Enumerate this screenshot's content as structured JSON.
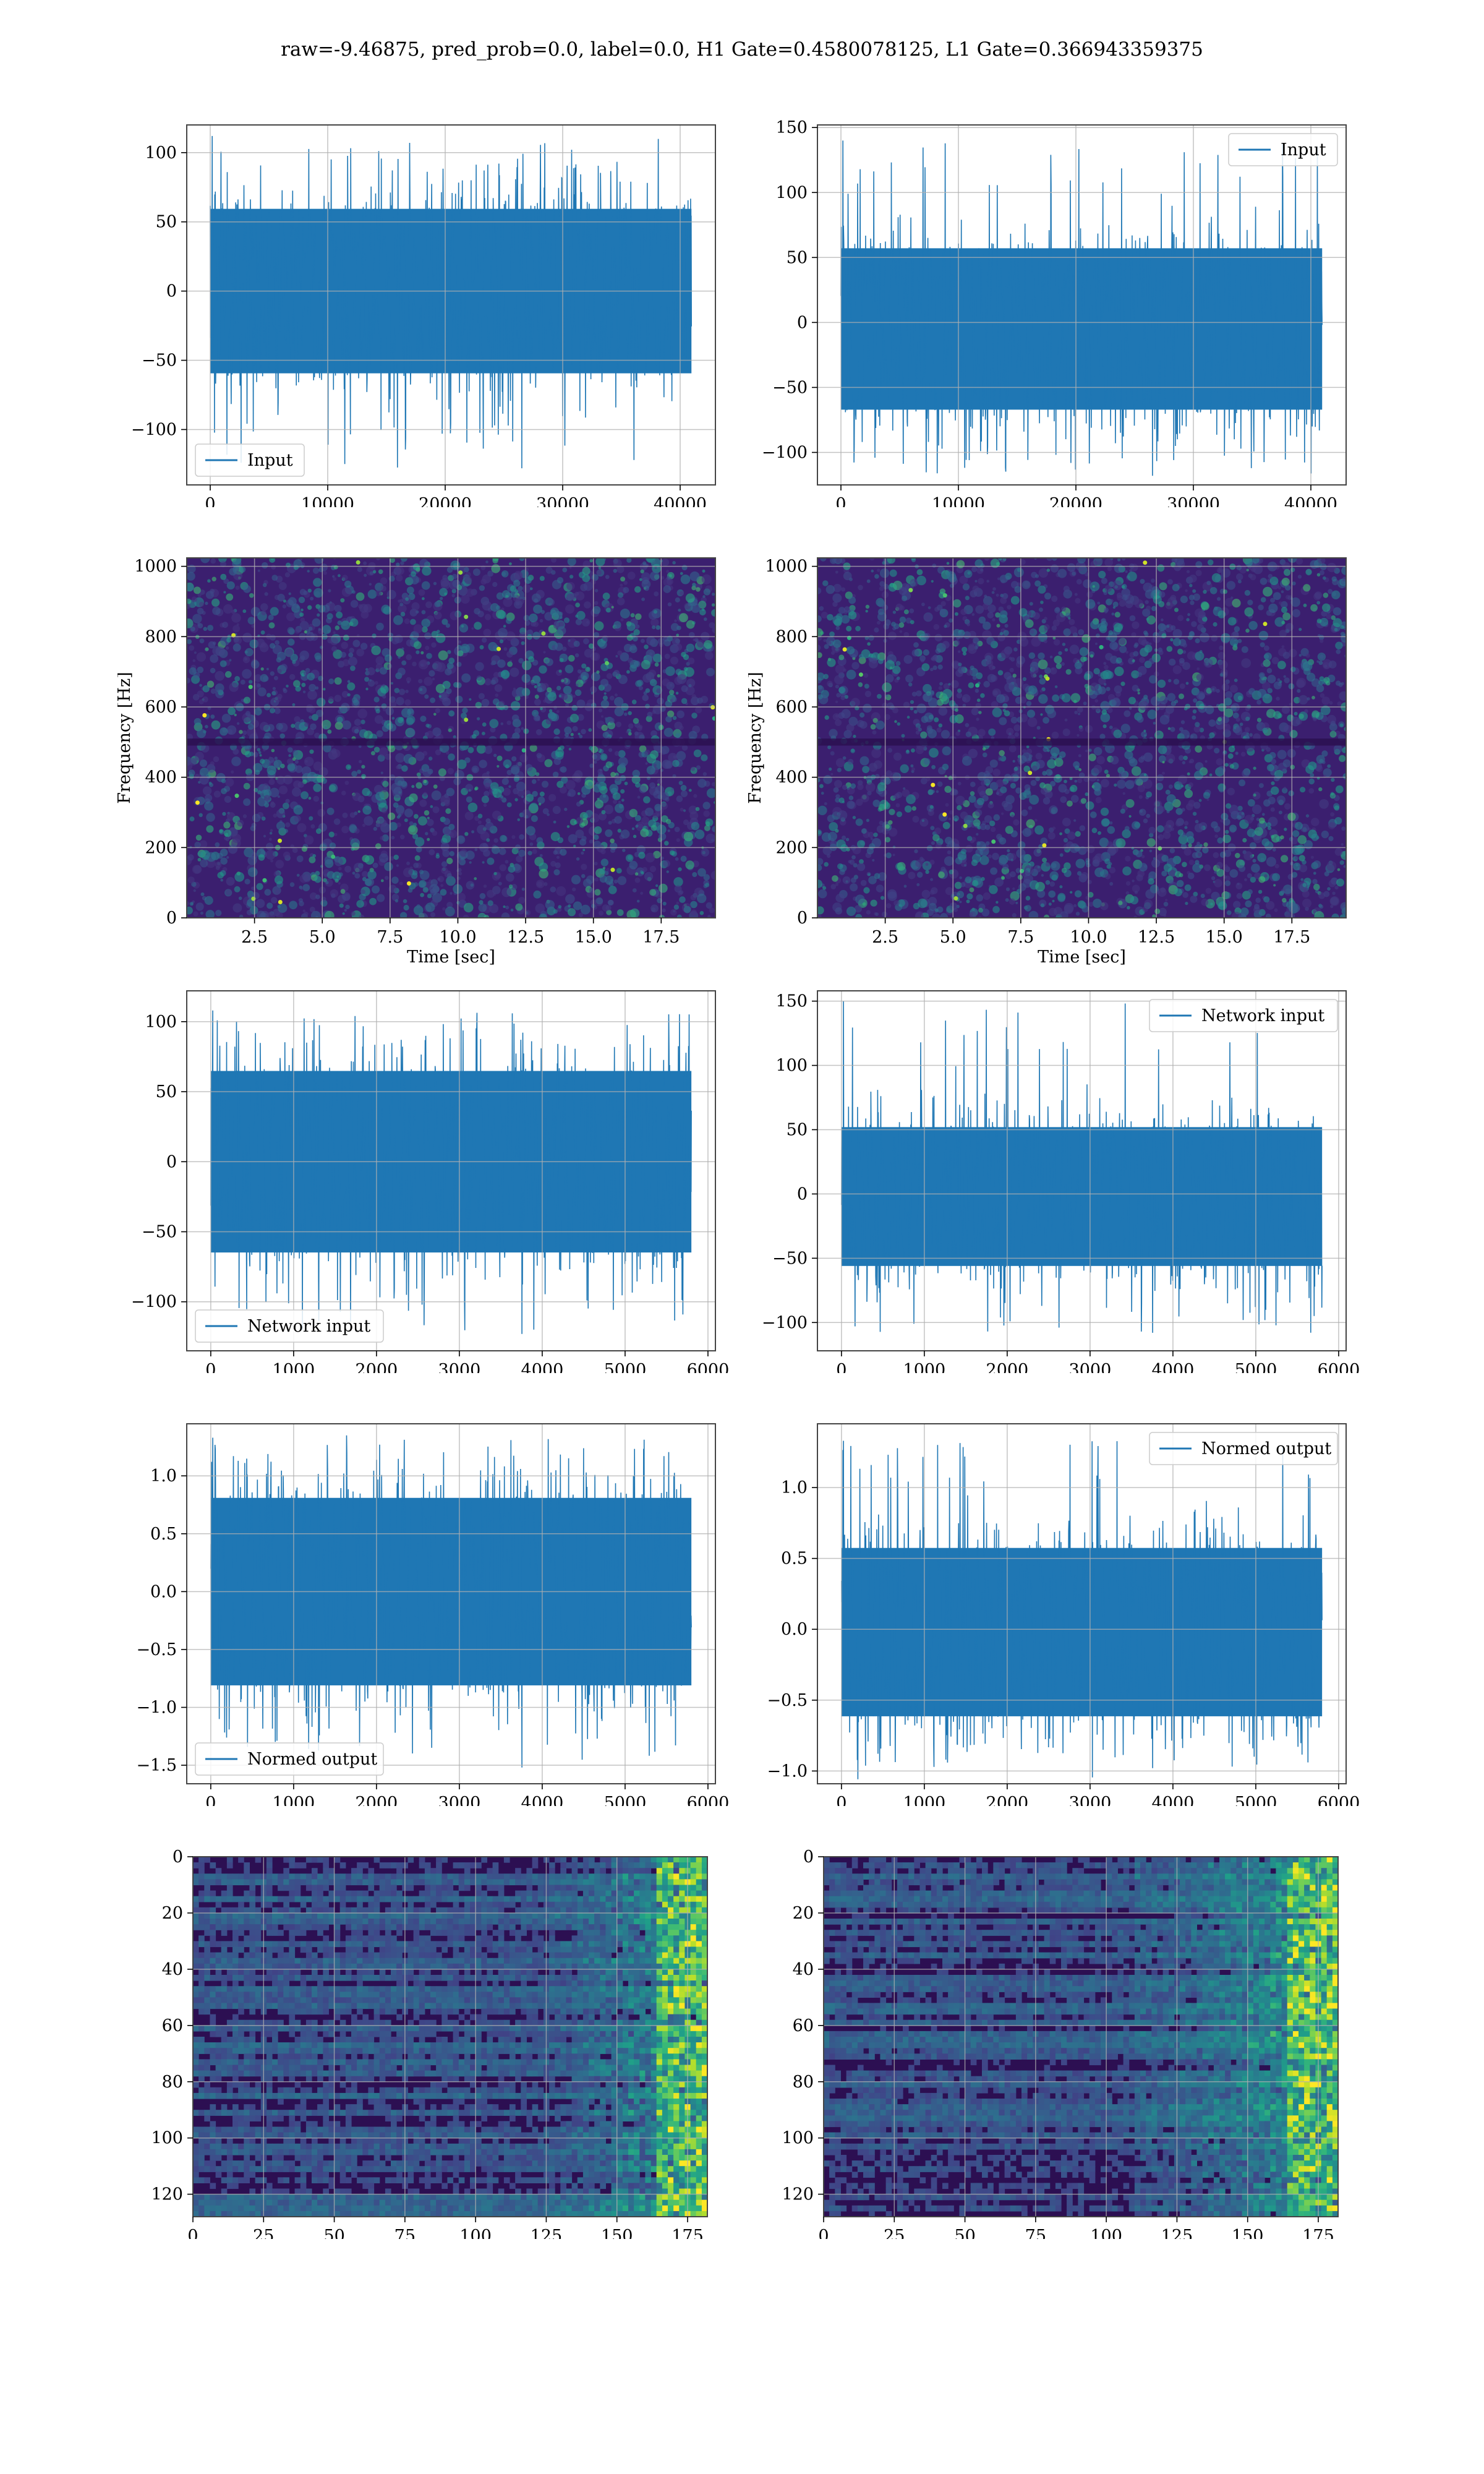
{
  "figure": {
    "suptitle": "raw=-9.46875, pred_prob=0.0, label=0.0, H1 Gate=0.4580078125, L1 Gate=0.366943359375",
    "colors": {
      "series": "#1f77b4",
      "grid": "#b0b0b0",
      "spec_bg": "#3b1e6e"
    }
  },
  "chart_data": [
    {
      "type": "line",
      "title": "",
      "xlabel": "",
      "ylabel": "",
      "xlim": [
        -2000,
        43000
      ],
      "ylim": [
        -140,
        120
      ],
      "xticks": [
        0,
        10000,
        20000,
        30000,
        40000
      ],
      "yticks": [
        -100,
        -50,
        0,
        50,
        100
      ],
      "grid": true,
      "series": [
        {
          "name": "Input",
          "x_range": [
            0,
            40960
          ],
          "mean": 0,
          "std": 22,
          "peak_max": 112,
          "peak_min": -128
        }
      ],
      "legend": "lower-left"
    },
    {
      "type": "line",
      "title": "",
      "xlabel": "",
      "ylabel": "",
      "xlim": [
        -2000,
        43000
      ],
      "ylim": [
        -125,
        152
      ],
      "xticks": [
        0,
        10000,
        20000,
        30000,
        40000
      ],
      "yticks": [
        -100,
        -50,
        0,
        50,
        100,
        150
      ],
      "grid": true,
      "series": [
        {
          "name": "Input",
          "x_range": [
            0,
            40960
          ],
          "mean": -5,
          "std": 23,
          "peak_max": 140,
          "peak_min": -118
        }
      ],
      "legend": "upper-right"
    },
    {
      "type": "heatmap",
      "title": "",
      "xlabel": "Time [sec]",
      "ylabel": "Frequency [Hz]",
      "xlim": [
        0,
        19.5
      ],
      "ylim": [
        0,
        1024
      ],
      "xticks": [
        2.5,
        5.0,
        7.5,
        10.0,
        12.5,
        15.0,
        17.5
      ],
      "xtick_labels": [
        "2.5",
        "5.0",
        "7.5",
        "10.0",
        "12.5",
        "15.0",
        "17.5"
      ],
      "yticks": [
        0,
        200,
        400,
        600,
        800,
        1000
      ],
      "grid": true,
      "colormap": "viridis"
    },
    {
      "type": "heatmap",
      "title": "",
      "xlabel": "Time [sec]",
      "ylabel": "Frequency [Hz]",
      "xlim": [
        0,
        19.5
      ],
      "ylim": [
        0,
        1024
      ],
      "xticks": [
        2.5,
        5.0,
        7.5,
        10.0,
        12.5,
        15.0,
        17.5
      ],
      "xtick_labels": [
        "2.5",
        "5.0",
        "7.5",
        "10.0",
        "12.5",
        "15.0",
        "17.5"
      ],
      "yticks": [
        0,
        200,
        400,
        600,
        800,
        1000
      ],
      "grid": true,
      "colormap": "viridis"
    },
    {
      "type": "line",
      "title": "",
      "xlabel": "",
      "ylabel": "",
      "xlim": [
        -290,
        6090
      ],
      "ylim": [
        -135,
        122
      ],
      "xticks": [
        0,
        1000,
        2000,
        3000,
        4000,
        5000,
        6000
      ],
      "yticks": [
        -100,
        -50,
        0,
        50,
        100
      ],
      "grid": true,
      "series": [
        {
          "name": "Network input",
          "x_range": [
            0,
            5800
          ],
          "mean": 0,
          "std": 24,
          "peak_max": 108,
          "peak_min": -123
        }
      ],
      "legend": "lower-left"
    },
    {
      "type": "line",
      "title": "",
      "xlabel": "",
      "ylabel": "",
      "xlim": [
        -290,
        6090
      ],
      "ylim": [
        -122,
        158
      ],
      "xticks": [
        0,
        1000,
        2000,
        3000,
        4000,
        5000,
        6000
      ],
      "yticks": [
        -100,
        -50,
        0,
        50,
        100,
        150
      ],
      "grid": true,
      "series": [
        {
          "name": "Network input",
          "x_range": [
            0,
            5800
          ],
          "mean": -2,
          "std": 20,
          "peak_max": 150,
          "peak_min": -108
        }
      ],
      "legend": "upper-right"
    },
    {
      "type": "line",
      "title": "",
      "xlabel": "",
      "ylabel": "",
      "xlim": [
        -290,
        6090
      ],
      "ylim": [
        -1.66,
        1.45
      ],
      "xticks": [
        0,
        1000,
        2000,
        3000,
        4000,
        5000,
        6000
      ],
      "yticks": [
        -1.5,
        -1.0,
        -0.5,
        0.0,
        0.5,
        1.0
      ],
      "ytick_labels": [
        "−1.5",
        "−1.0",
        "−0.5",
        "0.0",
        "0.5",
        "1.0"
      ],
      "grid": true,
      "series": [
        {
          "name": "Normed output",
          "x_range": [
            0,
            5800
          ],
          "mean": 0,
          "std": 0.3,
          "peak_max": 1.33,
          "peak_min": -1.52
        }
      ],
      "legend": "lower-left"
    },
    {
      "type": "line",
      "title": "",
      "xlabel": "",
      "ylabel": "",
      "xlim": [
        -290,
        6090
      ],
      "ylim": [
        -1.09,
        1.45
      ],
      "xticks": [
        0,
        1000,
        2000,
        3000,
        4000,
        5000,
        6000
      ],
      "yticks": [
        -1.0,
        -0.5,
        0.0,
        0.5,
        1.0
      ],
      "ytick_labels": [
        "−1.0",
        "−0.5",
        "0.0",
        "0.5",
        "1.0"
      ],
      "grid": true,
      "series": [
        {
          "name": "Normed output",
          "x_range": [
            0,
            5800
          ],
          "mean": -0.02,
          "std": 0.22,
          "peak_max": 1.33,
          "peak_min": -0.98
        }
      ],
      "legend": "upper-right"
    },
    {
      "type": "heatmap",
      "title": "",
      "xlabel": "",
      "ylabel": "",
      "xlim": [
        0,
        182
      ],
      "ylim": [
        128,
        0
      ],
      "xticks": [
        0,
        25,
        50,
        75,
        100,
        125,
        150,
        175
      ],
      "yticks": [
        0,
        20,
        40,
        60,
        80,
        100,
        120
      ],
      "grid": true,
      "colormap": "viridis",
      "rows": 128,
      "cols": 182
    },
    {
      "type": "heatmap",
      "title": "",
      "xlabel": "",
      "ylabel": "",
      "xlim": [
        0,
        182
      ],
      "ylim": [
        128,
        0
      ],
      "xticks": [
        0,
        25,
        50,
        75,
        100,
        125,
        150,
        175
      ],
      "yticks": [
        0,
        20,
        40,
        60,
        80,
        100,
        120
      ],
      "grid": true,
      "colormap": "viridis",
      "rows": 128,
      "cols": 182
    }
  ]
}
